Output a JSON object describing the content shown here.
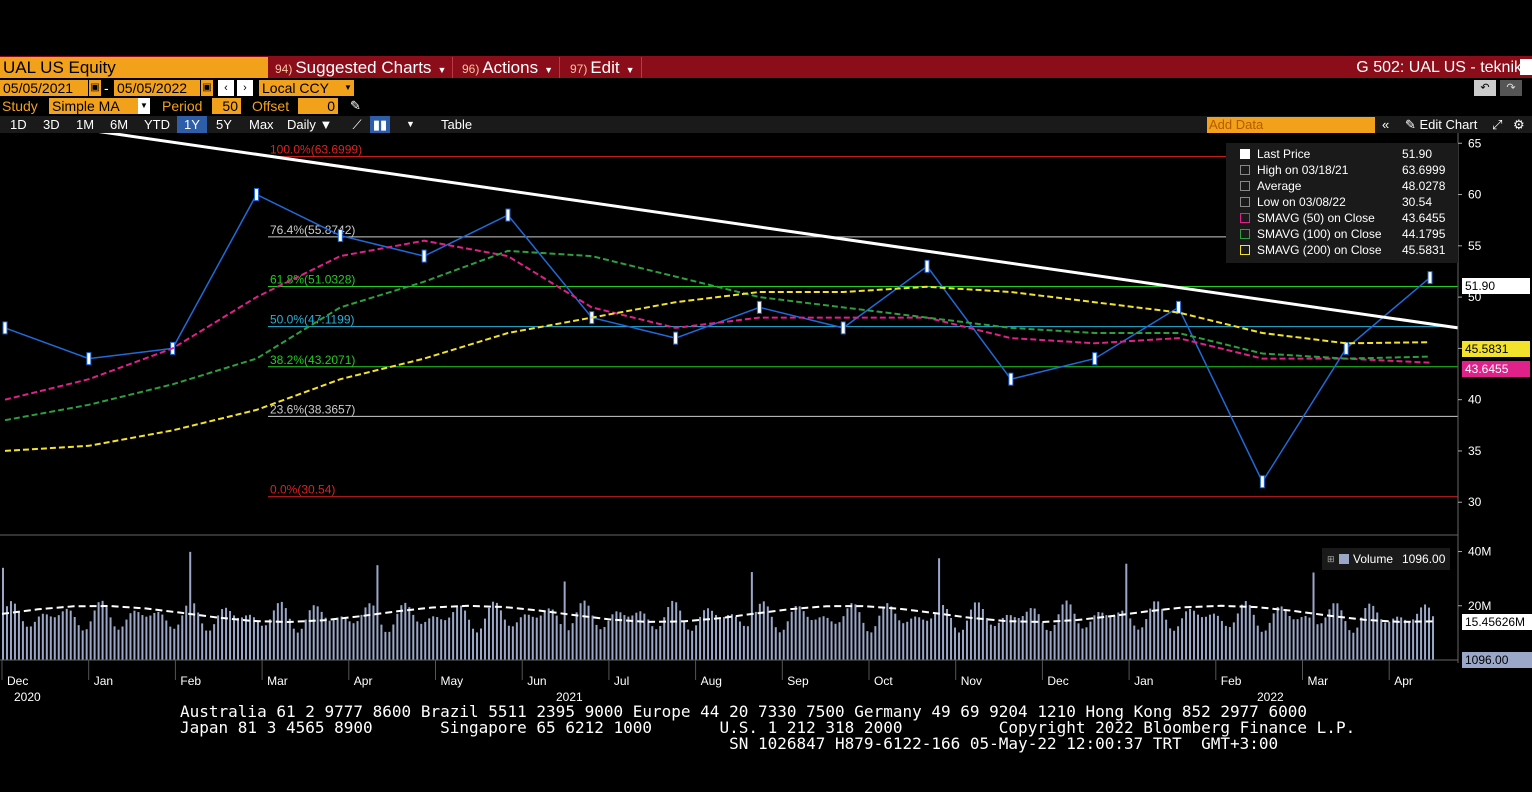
{
  "window": {
    "ticker": "UAL US Equity",
    "menus": [
      {
        "num": "94)",
        "label": "Suggested Charts"
      },
      {
        "num": "96)",
        "label": "Actions"
      },
      {
        "num": "97)",
        "label": "Edit"
      }
    ],
    "title": "G 502: UAL US - teknik"
  },
  "controls": {
    "start_date": "05/05/2021",
    "end_date": "05/05/2022",
    "date_sep": "-",
    "currency": "Local CCY",
    "study_label": "Study",
    "study_value": "Simple MA",
    "period_label": "Period",
    "period_value": "50",
    "offset_label": "Offset",
    "offset_value": "0"
  },
  "toolbar": {
    "ranges": [
      "1D",
      "3D",
      "1M",
      "6M",
      "YTD",
      "1Y",
      "5Y",
      "Max"
    ],
    "selected_range": "1Y",
    "frequency": "Daily",
    "table": "Table",
    "add_data_placeholder": "Add Data",
    "edit_chart": "Edit Chart"
  },
  "legend": {
    "rows": [
      {
        "name": "Last Price",
        "value": "51.90",
        "color": "#ffffff"
      },
      {
        "name": "High on 03/18/21",
        "value": "63.6999",
        "color": "#888888"
      },
      {
        "name": "Average",
        "value": "48.0278",
        "color": "#888888"
      },
      {
        "name": "Low on 03/08/22",
        "value": "30.54",
        "color": "#888888"
      },
      {
        "name": "SMAVG (50)  on Close",
        "value": "43.6455",
        "color": "#e0218a"
      },
      {
        "name": "SMAVG (100)  on Close",
        "value": "44.1795",
        "color": "#2e9e3e"
      },
      {
        "name": "SMAVG (200)  on Close",
        "value": "45.5831",
        "color": "#f3e22c"
      }
    ],
    "volume_label": "Volume",
    "volume_value": "1096.00"
  },
  "price_tags": {
    "last": "51.90",
    "sma200": "45.5831",
    "sma50": "43.6455",
    "vol_avg": "15.45626M",
    "vol_last": "1096.00"
  },
  "fib_levels": [
    {
      "label": "100.0%(63.6999)",
      "price": 63.6999,
      "color": "#e02020"
    },
    {
      "label": "76.4%(55.8742)",
      "price": 55.8742,
      "color": "#cccccc"
    },
    {
      "label": "61.8%(51.0328)",
      "price": 51.0328,
      "color": "#22cc22"
    },
    {
      "label": "50.0%(47.1199)",
      "price": 47.1199,
      "color": "#2ab0d8"
    },
    {
      "label": "38.2%(43.2071)",
      "price": 43.2071,
      "color": "#22cc22"
    },
    {
      "label": "23.6%(38.3657)",
      "price": 38.3657,
      "color": "#cccccc"
    },
    {
      "label": "0.0%(30.54)",
      "price": 30.54,
      "color": "#e02020"
    }
  ],
  "axes": {
    "price_ticks": [
      "65",
      "60",
      "55",
      "50",
      "45",
      "40",
      "35",
      "30"
    ],
    "volume_ticks": [
      "40M",
      "20M"
    ],
    "months": [
      "Dec",
      "Jan",
      "Feb",
      "Mar",
      "Apr",
      "May",
      "Jun",
      "Jul",
      "Aug",
      "Sep",
      "Oct",
      "Nov",
      "Dec",
      "Jan",
      "Feb",
      "Mar",
      "Apr"
    ],
    "years": [
      "2020",
      "2021",
      "2022"
    ]
  },
  "footer": {
    "line1": "Australia 61 2 9777 8600 Brazil 5511 2395 9000 Europe 44 20 7330 7500 Germany 49 69 9204 1210 Hong Kong 852 2977 6000",
    "line2": "Japan 81 3 4565 8900       Singapore 65 6212 1000       U.S. 1 212 318 2000          Copyright 2022 Bloomberg Finance L.P.",
    "line3": "                                                         SN 1026847 H879-6122-166 05-May-22 12:00:37 TRT  GMT+3:00"
  },
  "chart_data": {
    "type": "line",
    "title": "",
    "ylabel": "",
    "ylim": [
      27,
      66
    ],
    "series": [
      {
        "name": "Last Price",
        "x": [
          "2020-12",
          "2021-01",
          "2021-02",
          "2021-03",
          "2021-04",
          "2021-05",
          "2021-06",
          "2021-07",
          "2021-08",
          "2021-09",
          "2021-10",
          "2021-11",
          "2021-12",
          "2022-01",
          "2022-02",
          "2022-03",
          "2022-04",
          "2022-05"
        ],
        "values": [
          47,
          44,
          45,
          60,
          56,
          54,
          58,
          48,
          46,
          49,
          47,
          53,
          42,
          44,
          49,
          32,
          45,
          51.9
        ]
      },
      {
        "name": "SMAVG (50)  on Close",
        "x": [
          "2020-12",
          "2021-01",
          "2021-02",
          "2021-03",
          "2021-04",
          "2021-05",
          "2021-06",
          "2021-07",
          "2021-08",
          "2021-09",
          "2021-10",
          "2021-11",
          "2021-12",
          "2022-01",
          "2022-02",
          "2022-03",
          "2022-04",
          "2022-05"
        ],
        "values": [
          40,
          42,
          45,
          50,
          54,
          55.5,
          54,
          49,
          47,
          48,
          48,
          48,
          46,
          45.5,
          46,
          44,
          44,
          43.6
        ]
      },
      {
        "name": "SMAVG (100)  on Close",
        "x": [
          "2020-12",
          "2021-01",
          "2021-02",
          "2021-03",
          "2021-04",
          "2021-05",
          "2021-06",
          "2021-07",
          "2021-08",
          "2021-09",
          "2021-10",
          "2021-11",
          "2021-12",
          "2022-01",
          "2022-02",
          "2022-03",
          "2022-04",
          "2022-05"
        ],
        "values": [
          38,
          39.5,
          41.5,
          44,
          49,
          51.5,
          54.5,
          54,
          52,
          50,
          49,
          48,
          47,
          46.5,
          46.5,
          44.5,
          44,
          44.2
        ]
      },
      {
        "name": "SMAVG (200)  on Close",
        "x": [
          "2020-12",
          "2021-01",
          "2021-02",
          "2021-03",
          "2021-04",
          "2021-05",
          "2021-06",
          "2021-07",
          "2021-08",
          "2021-09",
          "2021-10",
          "2021-11",
          "2021-12",
          "2022-01",
          "2022-02",
          "2022-03",
          "2022-04",
          "2022-05"
        ],
        "values": [
          35,
          35.5,
          37,
          39,
          42,
          44,
          46.5,
          48,
          49.5,
          50.5,
          50.5,
          51,
          50.5,
          49.5,
          48.5,
          46.5,
          45.5,
          45.6
        ]
      }
    ],
    "hlines": [
      63.6999,
      55.8742,
      51.0328,
      47.1199,
      43.2071,
      38.3657,
      30.54
    ],
    "trendline": {
      "from": [
        "2020-12",
        67
      ],
      "to": [
        "2022-05",
        47
      ]
    },
    "volume": {
      "name": "Volume",
      "last": 1096.0,
      "avg_last": "15.45626M",
      "ylim": [
        0,
        45000000
      ]
    },
    "grid": false,
    "legend_position": "top-right"
  }
}
